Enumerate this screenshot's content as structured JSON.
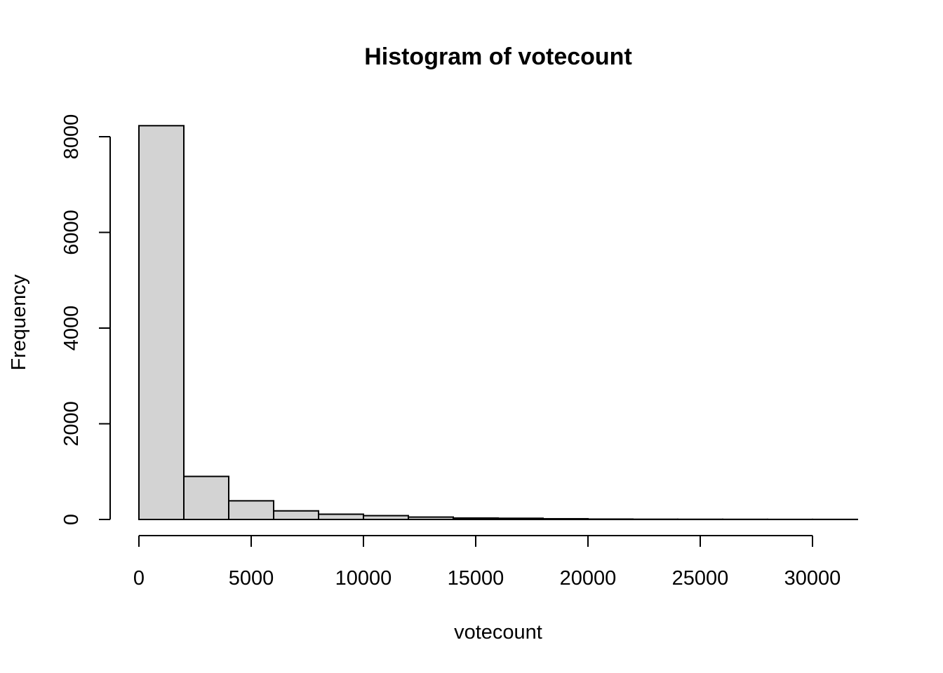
{
  "chart_data": {
    "type": "bar",
    "title": "Histogram of votecount",
    "xlabel": "votecount",
    "ylabel": "Frequency",
    "bin_edges": [
      0,
      2000,
      4000,
      6000,
      8000,
      10000,
      12000,
      14000,
      16000,
      18000,
      20000,
      22000,
      24000,
      26000,
      28000,
      30000,
      32000
    ],
    "values": [
      8230,
      900,
      390,
      180,
      110,
      80,
      50,
      30,
      25,
      15,
      8,
      5,
      4,
      3,
      2,
      2
    ],
    "xlim": [
      0,
      32000
    ],
    "ylim": [
      0,
      8000
    ],
    "x_ticks": [
      0,
      5000,
      10000,
      15000,
      20000,
      25000,
      30000
    ],
    "y_ticks": [
      0,
      2000,
      4000,
      6000,
      8000
    ],
    "bar_color": "#d3d3d3",
    "grid": false
  }
}
